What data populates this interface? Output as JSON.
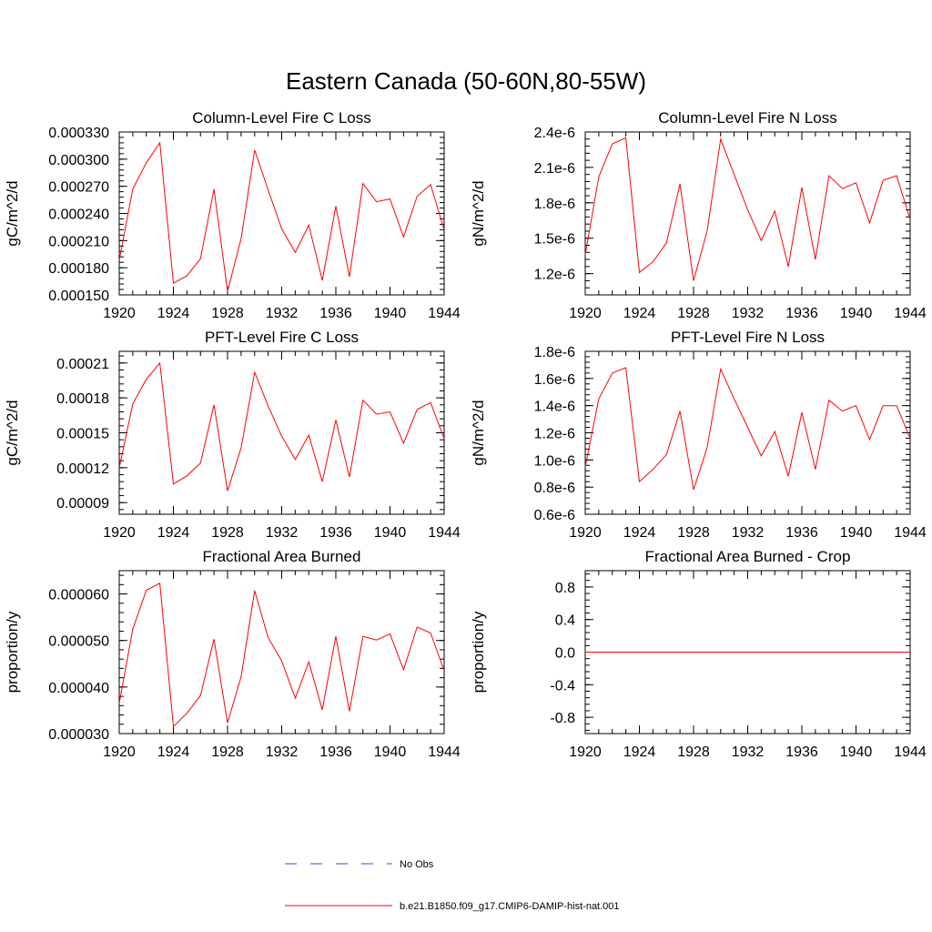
{
  "figure": {
    "title": "Eastern Canada (50-60N,80-55W)"
  },
  "legend": [
    {
      "label": "No Obs",
      "color": "#3b4bd8",
      "style": "dashed"
    },
    {
      "label": "b.e21.B1850.f09_g17.CMIP6-DAMIP-hist-nat.001",
      "color": "#ff0000",
      "style": "solid"
    }
  ],
  "chart_data": [
    {
      "type": "line",
      "title": "Column-Level Fire C Loss",
      "ylabel": "gC/m^2/d",
      "xlim": [
        1920,
        1944
      ],
      "ylim": [
        0.00015,
        0.00033
      ],
      "xticks": [
        1920,
        1924,
        1928,
        1932,
        1936,
        1940,
        1944
      ],
      "xtick_labels": [
        "1920",
        "1924",
        "1928",
        "1932",
        "1936",
        "1940",
        "1944"
      ],
      "yticks": [
        0.00015,
        0.00018,
        0.00021,
        0.00024,
        0.00027,
        0.0003,
        0.00033
      ],
      "ytick_labels": [
        "0.000150",
        "0.000180",
        "0.000210",
        "0.000240",
        "0.000270",
        "0.000300",
        "0.000330"
      ],
      "x": [
        1920,
        1921,
        1922,
        1923,
        1924,
        1925,
        1926,
        1927,
        1928,
        1929,
        1930,
        1931,
        1932,
        1933,
        1934,
        1935,
        1936,
        1937,
        1938,
        1939,
        1940,
        1941,
        1942,
        1943,
        1944
      ],
      "series": [
        {
          "name": "b.e21.B1850.f09_g17.CMIP6-DAMIP-hist-nat.001",
          "color": "#ff0000",
          "values": [
            0.000188,
            0.000267,
            0.000296,
            0.000318,
            0.000163,
            0.000171,
            0.00019,
            0.000267,
            0.000154,
            0.000212,
            0.00031,
            0.000266,
            0.000223,
            0.000197,
            0.000227,
            0.000166,
            0.000248,
            0.00017,
            0.000273,
            0.000253,
            0.000256,
            0.000214,
            0.000259,
            0.000272,
            0.000222
          ]
        }
      ]
    },
    {
      "type": "line",
      "title": "Column-Level Fire N Loss",
      "ylabel": "gN/m^2/d",
      "xlim": [
        1920,
        1944
      ],
      "ylim": [
        1.02e-06,
        2.4e-06
      ],
      "xticks": [
        1920,
        1924,
        1928,
        1932,
        1936,
        1940,
        1944
      ],
      "xtick_labels": [
        "1920",
        "1924",
        "1928",
        "1932",
        "1936",
        "1940",
        "1944"
      ],
      "yticks": [
        1.2e-06,
        1.5e-06,
        1.8e-06,
        2.1e-06,
        2.4e-06
      ],
      "ytick_labels": [
        "1.2e-6",
        "1.5e-6",
        "1.8e-6",
        "2.1e-6",
        "2.4e-6"
      ],
      "x": [
        1920,
        1921,
        1922,
        1923,
        1924,
        1925,
        1926,
        1927,
        1928,
        1929,
        1930,
        1931,
        1932,
        1933,
        1934,
        1935,
        1936,
        1937,
        1938,
        1939,
        1940,
        1941,
        1942,
        1943,
        1944
      ],
      "series": [
        {
          "name": "b.e21.B1850.f09_g17.CMIP6-DAMIP-hist-nat.001",
          "color": "#ff0000",
          "values": [
            1.36e-06,
            2.02e-06,
            2.3e-06,
            2.35e-06,
            1.21e-06,
            1.3e-06,
            1.46e-06,
            1.96e-06,
            1.14e-06,
            1.56e-06,
            2.34e-06,
            2.04e-06,
            1.74e-06,
            1.48e-06,
            1.73e-06,
            1.26e-06,
            1.93e-06,
            1.32e-06,
            2.03e-06,
            1.92e-06,
            1.97e-06,
            1.63e-06,
            1.99e-06,
            2.03e-06,
            1.66e-06
          ]
        }
      ]
    },
    {
      "type": "line",
      "title": "PFT-Level Fire C Loss",
      "ylabel": "gC/m^2/d",
      "xlim": [
        1920,
        1944
      ],
      "ylim": [
        8e-05,
        0.00022
      ],
      "xticks": [
        1920,
        1924,
        1928,
        1932,
        1936,
        1940,
        1944
      ],
      "xtick_labels": [
        "1920",
        "1924",
        "1928",
        "1932",
        "1936",
        "1940",
        "1944"
      ],
      "yticks": [
        9e-05,
        0.00012,
        0.00015,
        0.00018,
        0.00021
      ],
      "ytick_labels": [
        "0.00009",
        "0.00012",
        "0.00015",
        "0.00018",
        "0.00021"
      ],
      "x": [
        1920,
        1921,
        1922,
        1923,
        1924,
        1925,
        1926,
        1927,
        1928,
        1929,
        1930,
        1931,
        1932,
        1933,
        1934,
        1935,
        1936,
        1937,
        1938,
        1939,
        1940,
        1941,
        1942,
        1943,
        1944
      ],
      "series": [
        {
          "name": "b.e21.B1850.f09_g17.CMIP6-DAMIP-hist-nat.001",
          "color": "#ff0000",
          "values": [
            0.00012,
            0.000175,
            0.000196,
            0.00021,
            0.000106,
            0.000113,
            0.000124,
            0.000174,
            0.0001,
            0.000137,
            0.000202,
            0.000173,
            0.000147,
            0.000127,
            0.000148,
            0.000108,
            0.000161,
            0.000112,
            0.000178,
            0.000166,
            0.000168,
            0.000141,
            0.00017,
            0.000176,
            0.000145
          ]
        }
      ]
    },
    {
      "type": "line",
      "title": "PFT-Level Fire N Loss",
      "ylabel": "gN/m^2/d",
      "xlim": [
        1920,
        1944
      ],
      "ylim": [
        6e-07,
        1.8e-06
      ],
      "xticks": [
        1920,
        1924,
        1928,
        1932,
        1936,
        1940,
        1944
      ],
      "xtick_labels": [
        "1920",
        "1924",
        "1928",
        "1932",
        "1936",
        "1940",
        "1944"
      ],
      "yticks": [
        6e-07,
        8e-07,
        1e-06,
        1.2e-06,
        1.4e-06,
        1.6e-06,
        1.8e-06
      ],
      "ytick_labels": [
        "0.6e-6",
        "0.8e-6",
        "1.0e-6",
        "1.2e-6",
        "1.4e-6",
        "1.6e-6",
        "1.8e-6"
      ],
      "x": [
        1920,
        1921,
        1922,
        1923,
        1924,
        1925,
        1926,
        1927,
        1928,
        1929,
        1930,
        1931,
        1932,
        1933,
        1934,
        1935,
        1936,
        1937,
        1938,
        1939,
        1940,
        1941,
        1942,
        1943,
        1944
      ],
      "series": [
        {
          "name": "b.e21.B1850.f09_g17.CMIP6-DAMIP-hist-nat.001",
          "color": "#ff0000",
          "values": [
            9.5e-07,
            1.45e-06,
            1.64e-06,
            1.68e-06,
            8.4e-07,
            9.3e-07,
            1.04e-06,
            1.36e-06,
            7.8e-07,
            1.09e-06,
            1.67e-06,
            1.45e-06,
            1.24e-06,
            1.03e-06,
            1.21e-06,
            8.8e-07,
            1.35e-06,
            9.3e-07,
            1.44e-06,
            1.36e-06,
            1.4e-06,
            1.15e-06,
            1.4e-06,
            1.4e-06,
            1.16e-06
          ]
        }
      ]
    },
    {
      "type": "line",
      "title": "Fractional Area Burned",
      "ylabel": "proportion/y",
      "xlim": [
        1920,
        1944
      ],
      "ylim": [
        3e-05,
        6.5e-05
      ],
      "xticks": [
        1920,
        1924,
        1928,
        1932,
        1936,
        1940,
        1944
      ],
      "xtick_labels": [
        "1920",
        "1924",
        "1928",
        "1932",
        "1936",
        "1940",
        "1944"
      ],
      "yticks": [
        3e-05,
        4e-05,
        5e-05,
        6e-05
      ],
      "ytick_labels": [
        "0.000030",
        "0.000040",
        "0.000050",
        "0.000060"
      ],
      "x": [
        1920,
        1921,
        1922,
        1923,
        1924,
        1925,
        1926,
        1927,
        1928,
        1929,
        1930,
        1931,
        1932,
        1933,
        1934,
        1935,
        1936,
        1937,
        1938,
        1939,
        1940,
        1941,
        1942,
        1943,
        1944
      ],
      "series": [
        {
          "name": "b.e21.B1850.f09_g17.CMIP6-DAMIP-hist-nat.001",
          "color": "#ff0000",
          "values": [
            3.65e-05,
            5.25e-05,
            6.08e-05,
            6.23e-05,
            3.15e-05,
            3.44e-05,
            3.82e-05,
            5.03e-05,
            3.23e-05,
            4.22e-05,
            6.07e-05,
            5.06e-05,
            4.56e-05,
            3.76e-05,
            4.54e-05,
            3.51e-05,
            5.09e-05,
            3.48e-05,
            5.09e-05,
            5.01e-05,
            5.14e-05,
            4.37e-05,
            5.29e-05,
            5.16e-05,
            4.35e-05
          ]
        }
      ]
    },
    {
      "type": "line",
      "title": "Fractional Area Burned - Crop",
      "ylabel": "proportion/y",
      "xlim": [
        1920,
        1944
      ],
      "ylim": [
        -1.0,
        1.0
      ],
      "xticks": [
        1920,
        1924,
        1928,
        1932,
        1936,
        1940,
        1944
      ],
      "xtick_labels": [
        "1920",
        "1924",
        "1928",
        "1932",
        "1936",
        "1940",
        "1944"
      ],
      "yticks": [
        -0.8,
        -0.4,
        0.0,
        0.4,
        0.8
      ],
      "ytick_labels": [
        "-0.8",
        "-0.4",
        "0.0",
        "0.4",
        "0.8"
      ],
      "x": [
        1920,
        1921,
        1922,
        1923,
        1924,
        1925,
        1926,
        1927,
        1928,
        1929,
        1930,
        1931,
        1932,
        1933,
        1934,
        1935,
        1936,
        1937,
        1938,
        1939,
        1940,
        1941,
        1942,
        1943,
        1944
      ],
      "series": [
        {
          "name": "b.e21.B1850.f09_g17.CMIP6-DAMIP-hist-nat.001",
          "color": "#ff0000",
          "values": [
            0,
            0,
            0,
            0,
            0,
            0,
            0,
            0,
            0,
            0,
            0,
            0,
            0,
            0,
            0,
            0,
            0,
            0,
            0,
            0,
            0,
            0,
            0,
            0,
            0
          ]
        }
      ]
    }
  ]
}
